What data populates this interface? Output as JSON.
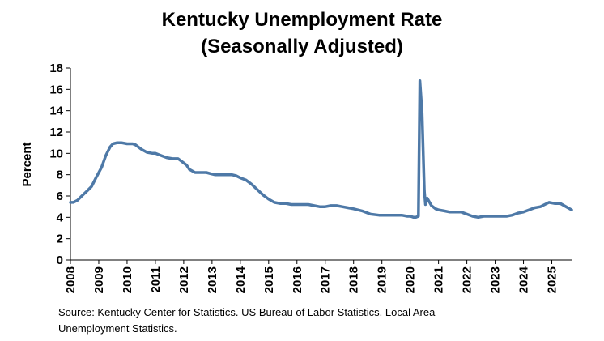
{
  "chart_data": {
    "type": "line",
    "title_line1": "Kentucky Unemployment Rate",
    "title_line2": "(Seasonally Adjusted)",
    "ylabel": "Percent",
    "xlabel": "",
    "ylim": [
      0,
      18
    ],
    "yticks": [
      0,
      2,
      4,
      6,
      8,
      10,
      12,
      14,
      16,
      18
    ],
    "xlim": [
      2008,
      2025.7
    ],
    "xticks": [
      "2008",
      "2009",
      "2010",
      "2011",
      "2012",
      "2013",
      "2014",
      "2015",
      "2016",
      "2017",
      "2018",
      "2019",
      "2020",
      "2021",
      "2022",
      "2023",
      "2024",
      "2025"
    ],
    "grid": false,
    "series": [
      {
        "name": "Kentucky Unemployment Rate",
        "color": "#4E79A7",
        "x": [
          2008.0,
          2008.1,
          2008.25,
          2008.4,
          2008.6,
          2008.75,
          2008.9,
          2009.1,
          2009.25,
          2009.4,
          2009.5,
          2009.65,
          2009.8,
          2010.0,
          2010.2,
          2010.3,
          2010.5,
          2010.7,
          2010.9,
          2011.0,
          2011.2,
          2011.4,
          2011.6,
          2011.8,
          2011.9,
          2012.1,
          2012.2,
          2012.4,
          2012.6,
          2012.8,
          2012.95,
          2013.1,
          2013.3,
          2013.5,
          2013.7,
          2013.85,
          2014.0,
          2014.2,
          2014.4,
          2014.6,
          2014.8,
          2015.0,
          2015.2,
          2015.4,
          2015.6,
          2015.8,
          2016.0,
          2016.2,
          2016.4,
          2016.6,
          2016.8,
          2017.0,
          2017.2,
          2017.4,
          2017.6,
          2017.8,
          2018.0,
          2018.3,
          2018.6,
          2018.9,
          2019.2,
          2019.5,
          2019.7,
          2019.9,
          2020.0,
          2020.12,
          2020.2,
          2020.29,
          2020.34,
          2020.42,
          2020.5,
          2020.54,
          2020.6,
          2020.75,
          2020.9,
          2021.0,
          2021.2,
          2021.4,
          2021.6,
          2021.8,
          2022.0,
          2022.2,
          2022.4,
          2022.6,
          2022.8,
          2023.0,
          2023.2,
          2023.4,
          2023.6,
          2023.8,
          2024.0,
          2024.2,
          2024.4,
          2024.6,
          2024.75,
          2024.9,
          2025.1,
          2025.3,
          2025.5,
          2025.7
        ],
        "y": [
          5.4,
          5.4,
          5.6,
          6.0,
          6.5,
          6.9,
          7.7,
          8.7,
          9.8,
          10.6,
          10.9,
          11.0,
          11.0,
          10.9,
          10.9,
          10.8,
          10.4,
          10.1,
          10.0,
          10.0,
          9.8,
          9.6,
          9.5,
          9.5,
          9.3,
          8.9,
          8.5,
          8.2,
          8.2,
          8.2,
          8.1,
          8.0,
          8.0,
          8.0,
          8.0,
          7.9,
          7.7,
          7.5,
          7.1,
          6.6,
          6.1,
          5.7,
          5.4,
          5.3,
          5.3,
          5.2,
          5.2,
          5.2,
          5.2,
          5.1,
          5.0,
          5.0,
          5.1,
          5.1,
          5.0,
          4.9,
          4.8,
          4.6,
          4.3,
          4.2,
          4.2,
          4.2,
          4.2,
          4.1,
          4.1,
          4.0,
          4.0,
          4.1,
          16.8,
          13.8,
          6.5,
          5.2,
          5.8,
          5.1,
          4.8,
          4.7,
          4.6,
          4.5,
          4.5,
          4.5,
          4.3,
          4.1,
          4.0,
          4.1,
          4.1,
          4.1,
          4.1,
          4.1,
          4.2,
          4.4,
          4.5,
          4.7,
          4.9,
          5.0,
          5.2,
          5.4,
          5.3,
          5.3,
          5.0,
          4.7
        ]
      }
    ],
    "source_line1": "Source: Kentucky Center for Statistics. US Bureau of Labor Statistics. Local Area",
    "source_line2": "Unemployment Statistics."
  }
}
